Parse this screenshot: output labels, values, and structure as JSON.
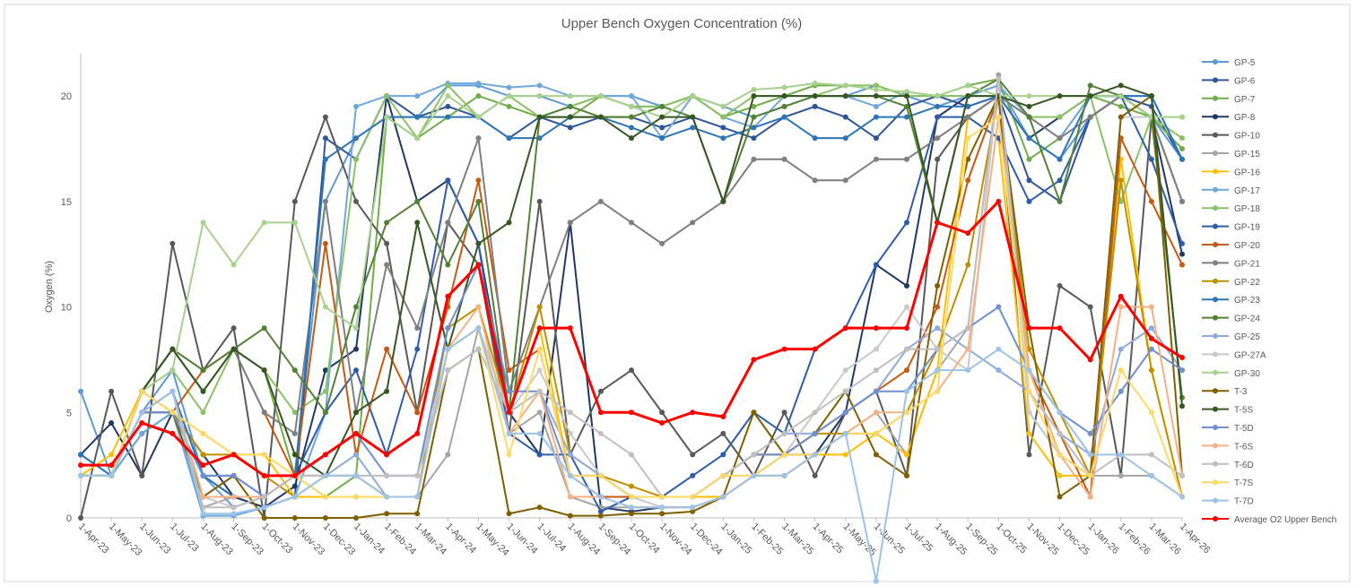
{
  "chart_data": {
    "type": "line",
    "title": "Upper Bench Oxygen Concentration (%)",
    "y_label": "Oxygen (%)",
    "categories": [
      "1-Apr-23",
      "1-May-23",
      "1-Jun-23",
      "1-Jul-23",
      "1-Aug-23",
      "1-Sep-23",
      "1-Oct-23",
      "1-Nov-23",
      "1-Dec-23",
      "1-Jan-24",
      "1-Feb-24",
      "1-Mar-24",
      "1-Apr-24",
      "1-May-24",
      "1-Jun-24",
      "1-Jul-24",
      "1-Aug-24",
      "1-Sep-24",
      "1-Oct-24",
      "1-Nov-24",
      "1-Dec-24",
      "1-Jan-25",
      "1-Feb-25",
      "1-Mar-25",
      "1-Apr-25",
      "1-May-25",
      "1-Jun-25",
      "1-Jul-25",
      "1-Aug-25",
      "1-Sep-25",
      "1-Oct-25",
      "1-Nov-25",
      "1-Dec-25",
      "1-Jan-26",
      "1-Feb-26",
      "1-Mar-26",
      "1-Apr-26"
    ],
    "ylim": [
      0,
      22
    ],
    "yticks": [
      0,
      5,
      10,
      15,
      20
    ],
    "grid": false,
    "legend": "right",
    "series": [
      {
        "name": "GP-5",
        "color": "#5b9bd5",
        "values": [
          6,
          2,
          5,
          7,
          2,
          0.5,
          1,
          2,
          15,
          18,
          19,
          19,
          20.5,
          20.5,
          20,
          20,
          19.5,
          20,
          20,
          19.5,
          20,
          19.5,
          19,
          19.5,
          20,
          20,
          20.5,
          20,
          19.5,
          20,
          20.5,
          18,
          17,
          19,
          20,
          19,
          17
        ]
      },
      {
        "name": "GP-6",
        "color": "#2f5597",
        "values": [
          2,
          2,
          4,
          5,
          2,
          1,
          0.5,
          1,
          18,
          17,
          20,
          19,
          19.5,
          19,
          18,
          19,
          18.5,
          19,
          19,
          18.5,
          19,
          18.5,
          18,
          19,
          19.5,
          19,
          18,
          19.5,
          20,
          19.5,
          20,
          16,
          15,
          19,
          20,
          19.5,
          17
        ]
      },
      {
        "name": "GP-7",
        "color": "#70ad47",
        "values": [
          2,
          2,
          6,
          8,
          7,
          8,
          7,
          2,
          1,
          2,
          19,
          18,
          19,
          20,
          19.5,
          19,
          19,
          20,
          19.5,
          19.5,
          20,
          19,
          19.5,
          20,
          20.5,
          20.5,
          20.5,
          20,
          20,
          20.5,
          20.8,
          17,
          18,
          20,
          19.5,
          19,
          17.5
        ]
      },
      {
        "name": "GP-8",
        "color": "#203864",
        "values": [
          3,
          4.5,
          2,
          5,
          3,
          1,
          0.5,
          1.5,
          7,
          8,
          20,
          15,
          16,
          13,
          5,
          3,
          14,
          0.5,
          0.3,
          0.5,
          0.5,
          1,
          2,
          3,
          3,
          5,
          12,
          11,
          19,
          20,
          20,
          18,
          19,
          20,
          20,
          19,
          12.5
        ]
      },
      {
        "name": "GP-10",
        "color": "#595959",
        "values": [
          0,
          6,
          2,
          13,
          7,
          9,
          0,
          15,
          19,
          15,
          13,
          5,
          14,
          12,
          4,
          15,
          3,
          6,
          7,
          5,
          3,
          4,
          2,
          5,
          2,
          5,
          6,
          2,
          17,
          19,
          20,
          3,
          11,
          10,
          2,
          19,
          15
        ]
      },
      {
        "name": "GP-15",
        "color": "#a5a5a5",
        "values": [
          2,
          2,
          5,
          5,
          0.5,
          1,
          1,
          2,
          2,
          2,
          1,
          1,
          3,
          9,
          4,
          5,
          1,
          0.5,
          0.5,
          0.5,
          0.5,
          1,
          2,
          2,
          3,
          4,
          5,
          3,
          7,
          9,
          21,
          5,
          3,
          2,
          2,
          2,
          1
        ]
      },
      {
        "name": "GP-16",
        "color": "#ffc000",
        "values": [
          2,
          3,
          6,
          5,
          4,
          3,
          3,
          1,
          1,
          1,
          1,
          1,
          8,
          9,
          5,
          9,
          2,
          2,
          1,
          1,
          1,
          1,
          2,
          2,
          3,
          3,
          4,
          3,
          7,
          19,
          18,
          4,
          2,
          2,
          17,
          7,
          1
        ]
      },
      {
        "name": "GP-17",
        "color": "#6fa8dc",
        "values": [
          2,
          2,
          4,
          5,
          0.1,
          0.1,
          0.5,
          1,
          5,
          19.5,
          20,
          20,
          20.6,
          20.6,
          20.4,
          20.5,
          20,
          20,
          20,
          18,
          20,
          19,
          18.5,
          20,
          20,
          20,
          19.5,
          20.2,
          20,
          20,
          20.5,
          19,
          18,
          20,
          20,
          20,
          17
        ]
      },
      {
        "name": "GP-18",
        "color": "#8cc265",
        "values": [
          2,
          2,
          6,
          7,
          5,
          8,
          7,
          5,
          6,
          17,
          20,
          18,
          20.5,
          19,
          20,
          19,
          19.5,
          20,
          19.5,
          19.5,
          20,
          19,
          20,
          20,
          20,
          20.5,
          20.5,
          20,
          20,
          20,
          20,
          19,
          19,
          20,
          15,
          19,
          18
        ]
      },
      {
        "name": "GP-19",
        "color": "#2e5da8",
        "values": [
          3,
          2,
          5,
          6,
          2,
          2,
          1,
          2,
          5,
          7,
          3,
          8,
          16,
          13,
          4,
          3,
          3,
          0.3,
          1,
          1,
          2,
          3,
          5,
          4,
          8,
          9,
          12,
          14,
          19,
          19,
          18,
          15,
          16,
          19,
          20,
          17,
          13
        ]
      },
      {
        "name": "GP-20",
        "color": "#c55a11",
        "values": [
          2,
          2,
          5,
          5,
          7,
          8,
          5,
          2,
          13,
          3,
          8,
          5,
          10,
          16,
          7,
          8,
          2,
          1,
          1,
          1,
          1,
          2,
          3,
          3,
          4,
          5,
          6,
          7,
          10,
          16,
          20,
          7,
          4,
          1,
          18,
          15,
          12
        ]
      },
      {
        "name": "GP-21",
        "color": "#7f7f7f",
        "values": [
          2,
          2,
          6,
          8,
          6,
          8,
          5,
          4,
          15,
          5,
          12,
          9,
          14,
          18,
          6,
          10,
          14,
          15,
          14,
          13,
          14,
          15,
          17,
          17,
          16,
          16,
          17,
          17,
          18,
          19,
          20,
          19,
          18,
          19,
          20,
          19,
          15
        ]
      },
      {
        "name": "GP-22",
        "color": "#bf9000",
        "values": [
          2,
          2,
          6,
          5,
          3,
          3,
          2,
          1,
          2,
          2,
          1,
          1,
          9,
          10,
          5,
          10,
          3,
          2,
          1.5,
          1,
          1,
          2,
          3,
          3,
          4,
          4,
          4,
          5,
          8,
          12,
          20,
          8,
          5,
          2,
          16,
          7,
          1
        ]
      },
      {
        "name": "GP-23",
        "color": "#2e75b6",
        "values": [
          3,
          2,
          5,
          6,
          2,
          1,
          1,
          2,
          17,
          18,
          19,
          19,
          19,
          19,
          18,
          18,
          19,
          19,
          18.5,
          18,
          18.5,
          18,
          18.5,
          19,
          18,
          18,
          19,
          19,
          19.5,
          19.5,
          20,
          18,
          17,
          20,
          20,
          20,
          17
        ]
      },
      {
        "name": "GP-24",
        "color": "#548235",
        "values": [
          2,
          2,
          6,
          8,
          7,
          8,
          9,
          7,
          5,
          10,
          14,
          15,
          12,
          15,
          5,
          19,
          19.5,
          19,
          19,
          19.5,
          19,
          15,
          19,
          19.5,
          20,
          20,
          20,
          19.5,
          14,
          20,
          20.8,
          19,
          15,
          20.5,
          20,
          19,
          5.7
        ]
      },
      {
        "name": "GP-25",
        "color": "#8faadc",
        "values": [
          2,
          2,
          5,
          5,
          1,
          2,
          1,
          2,
          2,
          3,
          1,
          1,
          8,
          9,
          5,
          6,
          3,
          2,
          1,
          1,
          1,
          2,
          3,
          4,
          4,
          5,
          6,
          8,
          9,
          8,
          7,
          6,
          4,
          3,
          8,
          9,
          7
        ]
      },
      {
        "name": "GP-27A",
        "color": "#c9c9c9",
        "values": [
          2,
          2,
          5,
          6,
          1,
          0.5,
          1,
          2,
          2,
          2,
          2,
          2,
          8,
          9,
          5,
          7,
          4,
          2,
          1,
          0.5,
          0.5,
          1,
          2,
          3,
          5,
          7,
          8,
          10,
          8,
          7,
          20.8,
          5,
          3,
          2,
          19,
          19,
          19
        ]
      },
      {
        "name": "GP-30",
        "color": "#a9d18e",
        "values": [
          2,
          2,
          6,
          7,
          14,
          12,
          14,
          14,
          10,
          9,
          19,
          18,
          20,
          19,
          20,
          20,
          20,
          20,
          19.5,
          19,
          20,
          19.5,
          20.3,
          20.4,
          20.6,
          20.5,
          20.3,
          20.2,
          20,
          20.5,
          20,
          20,
          20,
          20,
          20,
          19,
          19
        ]
      },
      {
        "name": "T-3",
        "color": "#7f6000",
        "values": [
          2,
          2,
          5,
          5,
          1,
          2,
          0,
          0,
          0,
          0,
          0.2,
          0.2,
          7,
          8,
          0.2,
          0.5,
          0.1,
          0.1,
          0.2,
          0.2,
          0.3,
          1,
          5,
          3,
          4,
          6,
          3,
          2,
          11,
          17,
          20,
          9,
          1,
          2,
          19,
          20,
          2
        ]
      },
      {
        "name": "T-5S",
        "color": "#375623",
        "values": [
          2,
          2,
          6,
          8,
          6,
          8,
          7,
          3,
          2,
          5,
          6,
          14,
          8,
          13,
          14,
          19,
          19,
          19,
          18,
          19,
          19,
          15,
          20,
          20,
          20,
          20,
          20,
          20,
          14,
          20,
          20,
          19.5,
          20,
          20,
          20.5,
          20,
          5.3
        ]
      },
      {
        "name": "T-5D",
        "color": "#6f8fcf",
        "values": [
          2,
          2,
          5,
          5,
          2,
          2,
          1,
          2,
          3,
          4,
          2,
          2,
          9,
          12,
          6,
          6,
          2,
          2,
          1,
          1,
          1,
          2,
          3,
          3,
          4,
          5,
          6,
          6,
          8,
          9,
          10,
          7,
          5,
          4,
          6,
          8,
          7
        ]
      },
      {
        "name": "T-6S",
        "color": "#f4b183",
        "values": [
          2,
          2,
          5,
          6,
          1,
          1,
          1,
          2,
          2,
          2,
          1,
          1,
          8,
          10,
          4,
          6,
          1,
          1,
          0.5,
          0.5,
          0.5,
          1,
          2,
          2,
          3,
          4,
          5,
          5,
          6,
          8,
          19,
          7,
          3,
          1,
          10,
          10,
          2
        ]
      },
      {
        "name": "T-6D",
        "color": "#bfbfbf",
        "values": [
          2,
          2,
          5,
          6,
          0.5,
          0.5,
          1,
          2,
          2,
          2,
          2,
          2,
          7,
          8,
          5,
          6,
          5,
          4,
          3,
          1,
          1,
          2,
          3,
          4,
          5,
          6,
          7,
          8,
          8,
          9,
          20.8,
          6,
          4,
          2,
          3,
          3,
          2
        ]
      },
      {
        "name": "T-7S",
        "color": "#ffd966",
        "values": [
          2,
          2,
          6,
          5,
          4,
          3,
          3,
          2,
          1,
          1,
          1,
          1,
          8,
          9,
          3,
          8,
          2,
          2,
          1,
          1,
          1,
          2,
          2,
          3,
          3,
          4,
          4,
          5,
          6,
          18,
          19,
          6,
          3,
          2,
          7,
          5,
          1
        ]
      },
      {
        "name": "T-7D",
        "color": "#9dc3e6",
        "values": [
          2,
          2,
          5,
          6,
          0.2,
          0.2,
          0.5,
          1,
          2,
          2,
          1,
          1,
          8,
          9,
          4,
          4,
          2,
          1,
          0.5,
          0.5,
          0.5,
          1,
          2,
          2,
          3,
          4,
          -3,
          6,
          7,
          7,
          8,
          7,
          5,
          3,
          3,
          2,
          1
        ]
      },
      {
        "name": "Average O2 Upper Bench",
        "color": "#ff0000",
        "values": [
          2.5,
          2.5,
          4.5,
          4,
          2.5,
          3,
          2,
          2,
          3,
          4,
          3,
          4,
          10.5,
          12,
          5,
          9,
          9,
          5,
          5,
          4.5,
          5,
          4.8,
          7.5,
          8,
          8,
          9,
          9,
          9,
          14,
          13.5,
          15,
          9,
          9,
          7.5,
          10.5,
          8.5,
          7.6
        ]
      }
    ]
  }
}
